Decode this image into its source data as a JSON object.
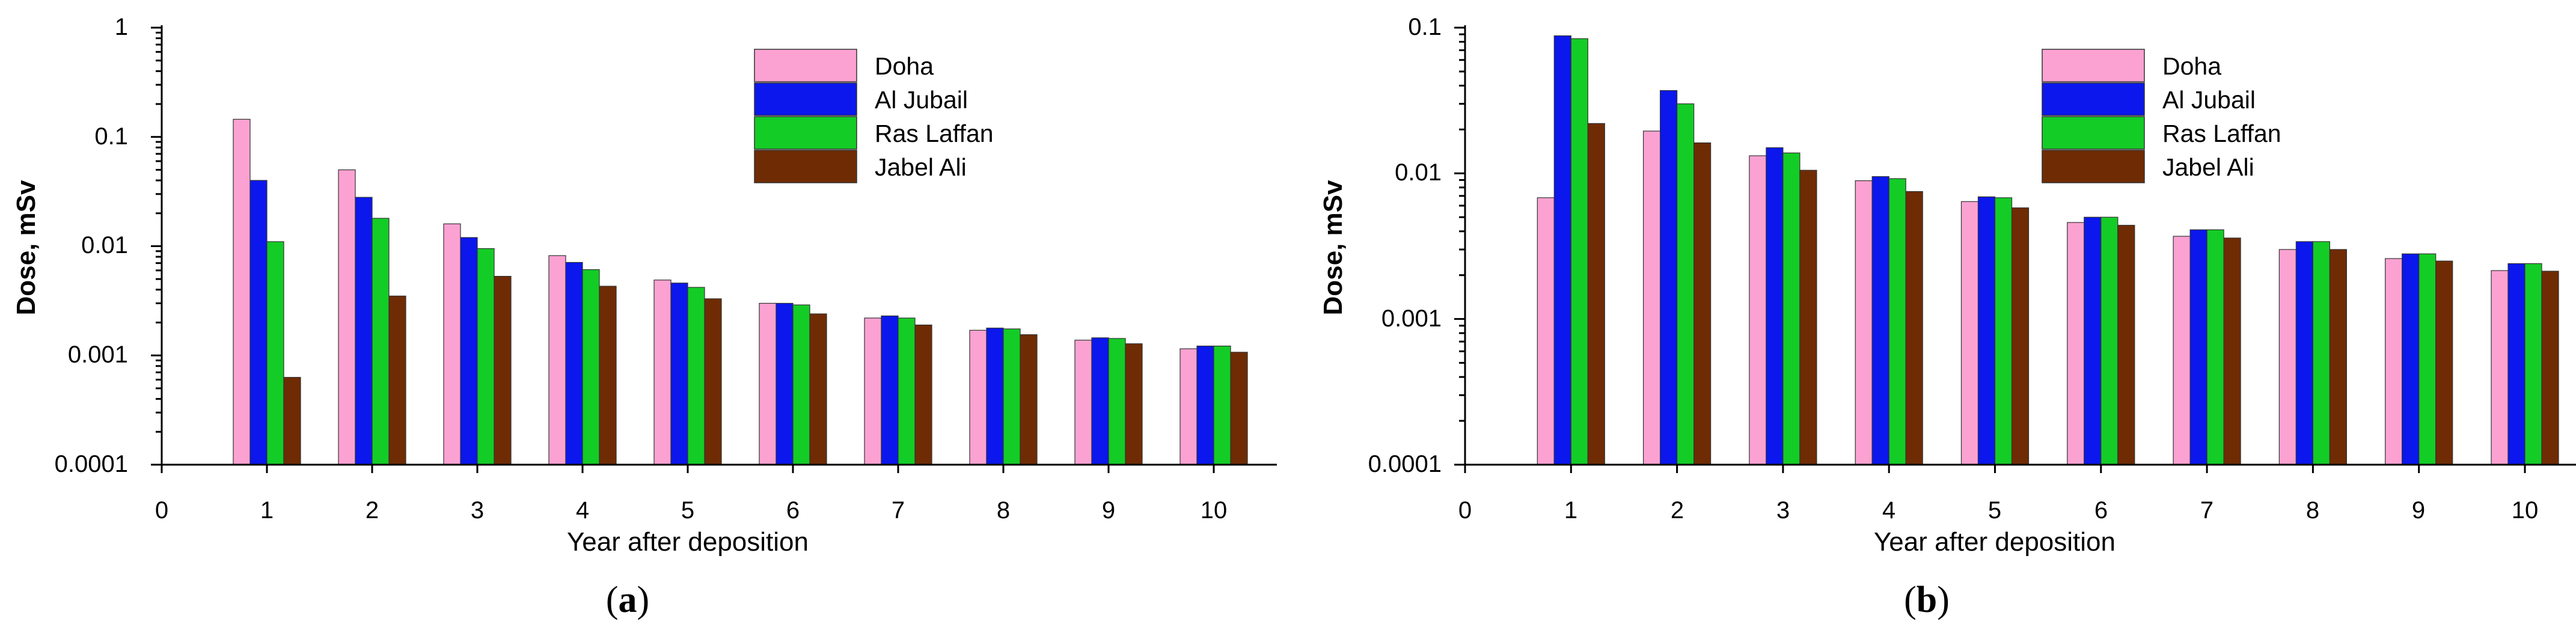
{
  "colors": {
    "Doha": "#fba2d2",
    "Al Jubail": "#0b17ec",
    "Ras Laffan": "#14cc26",
    "Jabel Ali": "#6f2b04"
  },
  "chart_data": [
    {
      "type": "bar",
      "panel_label": "a",
      "title": "",
      "xlabel": "Year after deposition",
      "ylabel": "Dose, mSv",
      "y_scale": "log",
      "ylim": [
        0.0001,
        1
      ],
      "xlim": [
        0,
        10.6
      ],
      "x_ticks": [
        "0",
        "1",
        "2",
        "3",
        "4",
        "5",
        "6",
        "7",
        "8",
        "9",
        "10"
      ],
      "y_ticks": [
        "0.0001",
        "0.001",
        "0.01",
        "0.1",
        "1"
      ],
      "legend_position": "top-right",
      "grid": false,
      "categories": [
        1,
        2,
        3,
        4,
        5,
        6,
        7,
        8,
        9,
        10
      ],
      "series": [
        {
          "name": "Doha",
          "values": [
            0.145,
            0.05,
            0.016,
            0.0082,
            0.0049,
            0.003,
            0.0022,
            0.0017,
            0.00138,
            0.00115
          ]
        },
        {
          "name": "Al Jubail",
          "values": [
            0.04,
            0.028,
            0.012,
            0.0071,
            0.0046,
            0.003,
            0.0023,
            0.00178,
            0.00145,
            0.00122
          ]
        },
        {
          "name": "Ras Laffan",
          "values": [
            0.011,
            0.018,
            0.0095,
            0.0061,
            0.0042,
            0.0029,
            0.0022,
            0.00175,
            0.00143,
            0.00122
          ]
        },
        {
          "name": "Jabel Ali",
          "values": [
            0.00063,
            0.0035,
            0.0053,
            0.0043,
            0.0033,
            0.0024,
            0.0019,
            0.00155,
            0.00128,
            0.00107
          ]
        }
      ]
    },
    {
      "type": "bar",
      "panel_label": "b",
      "title": "",
      "xlabel": "Year after deposition",
      "ylabel": "Dose, mSv",
      "y_scale": "log",
      "ylim": [
        0.0001,
        0.1
      ],
      "xlim": [
        0,
        10.6
      ],
      "x_ticks": [
        "0",
        "1",
        "2",
        "3",
        "4",
        "5",
        "6",
        "7",
        "8",
        "9",
        "10"
      ],
      "y_ticks": [
        "0.0001",
        "0.001",
        "0.01",
        "0.1"
      ],
      "legend_position": "top-right",
      "grid": false,
      "categories": [
        1,
        2,
        3,
        4,
        5,
        6,
        7,
        8,
        9,
        10
      ],
      "series": [
        {
          "name": "Doha",
          "values": [
            0.0068,
            0.0195,
            0.0132,
            0.0089,
            0.0064,
            0.0046,
            0.0037,
            0.003,
            0.0026,
            0.00215
          ]
        },
        {
          "name": "Al Jubail",
          "values": [
            0.088,
            0.037,
            0.015,
            0.0095,
            0.0069,
            0.005,
            0.0041,
            0.0034,
            0.0028,
            0.0024
          ]
        },
        {
          "name": "Ras Laffan",
          "values": [
            0.084,
            0.03,
            0.0138,
            0.0092,
            0.0068,
            0.005,
            0.0041,
            0.0034,
            0.0028,
            0.0024
          ]
        },
        {
          "name": "Jabel Ali",
          "values": [
            0.022,
            0.0162,
            0.0105,
            0.0075,
            0.0058,
            0.0044,
            0.0036,
            0.003,
            0.0025,
            0.00213
          ]
        }
      ]
    }
  ]
}
